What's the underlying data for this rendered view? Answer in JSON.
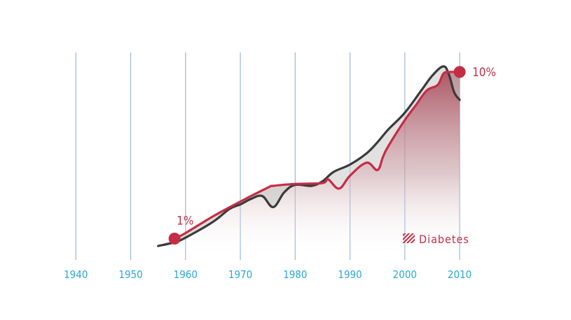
{
  "colors": {
    "grid": "#9bb7d4",
    "tick": "#29a9d6",
    "diabetes_line": "#c42d45",
    "overall_line": "#3a3a3a",
    "fill_top": "#a94e5c",
    "band": "#c8c8c8"
  },
  "chart_data": {
    "type": "line",
    "xlim": [
      1933,
      2022
    ],
    "ylim": [
      0,
      12
    ],
    "x_ticks": [
      1940,
      1950,
      1960,
      1970,
      1980,
      1990,
      2000,
      2010
    ],
    "grid": "vertical",
    "legend": {
      "position": "bottom-right",
      "label": "Diabetes",
      "icon": "hatch-icon"
    },
    "annotations": [
      {
        "text": "1%",
        "x": 1958,
        "y": 1
      },
      {
        "text": "10%",
        "x": 2010,
        "y": 10
      }
    ],
    "series": [
      {
        "key": "diabetes",
        "name": "Diabetes",
        "x": [
          1958,
          1960,
          1965,
          1970,
          1975,
          1976,
          1980,
          1985,
          1986,
          1988,
          1990,
          1993,
          1995,
          1996,
          1997,
          2000,
          2002,
          2004,
          2006,
          2007,
          2008,
          2010
        ],
        "y": [
          1.0,
          1.3,
          2.2,
          3.0,
          3.75,
          3.85,
          3.95,
          4.0,
          4.2,
          3.7,
          4.4,
          5.1,
          4.7,
          5.4,
          6.0,
          7.4,
          8.2,
          9.0,
          9.3,
          9.9,
          10.0,
          10.0
        ]
      },
      {
        "key": "overall",
        "name": "",
        "x": [
          1955,
          1958,
          1960,
          1965,
          1968,
          1970,
          1972,
          1974,
          1976,
          1978,
          1980,
          1983,
          1985,
          1987,
          1990,
          1993,
          1995,
          1997,
          2000,
          2003,
          2005,
          2007,
          2008,
          2009,
          2010
        ],
        "y": [
          0.6,
          0.8,
          1.05,
          1.9,
          2.6,
          2.85,
          3.15,
          3.3,
          2.7,
          3.5,
          3.9,
          3.85,
          4.1,
          4.6,
          5.0,
          5.6,
          6.2,
          6.9,
          7.8,
          9.0,
          9.8,
          10.3,
          9.9,
          8.9,
          8.5
        ]
      }
    ]
  }
}
